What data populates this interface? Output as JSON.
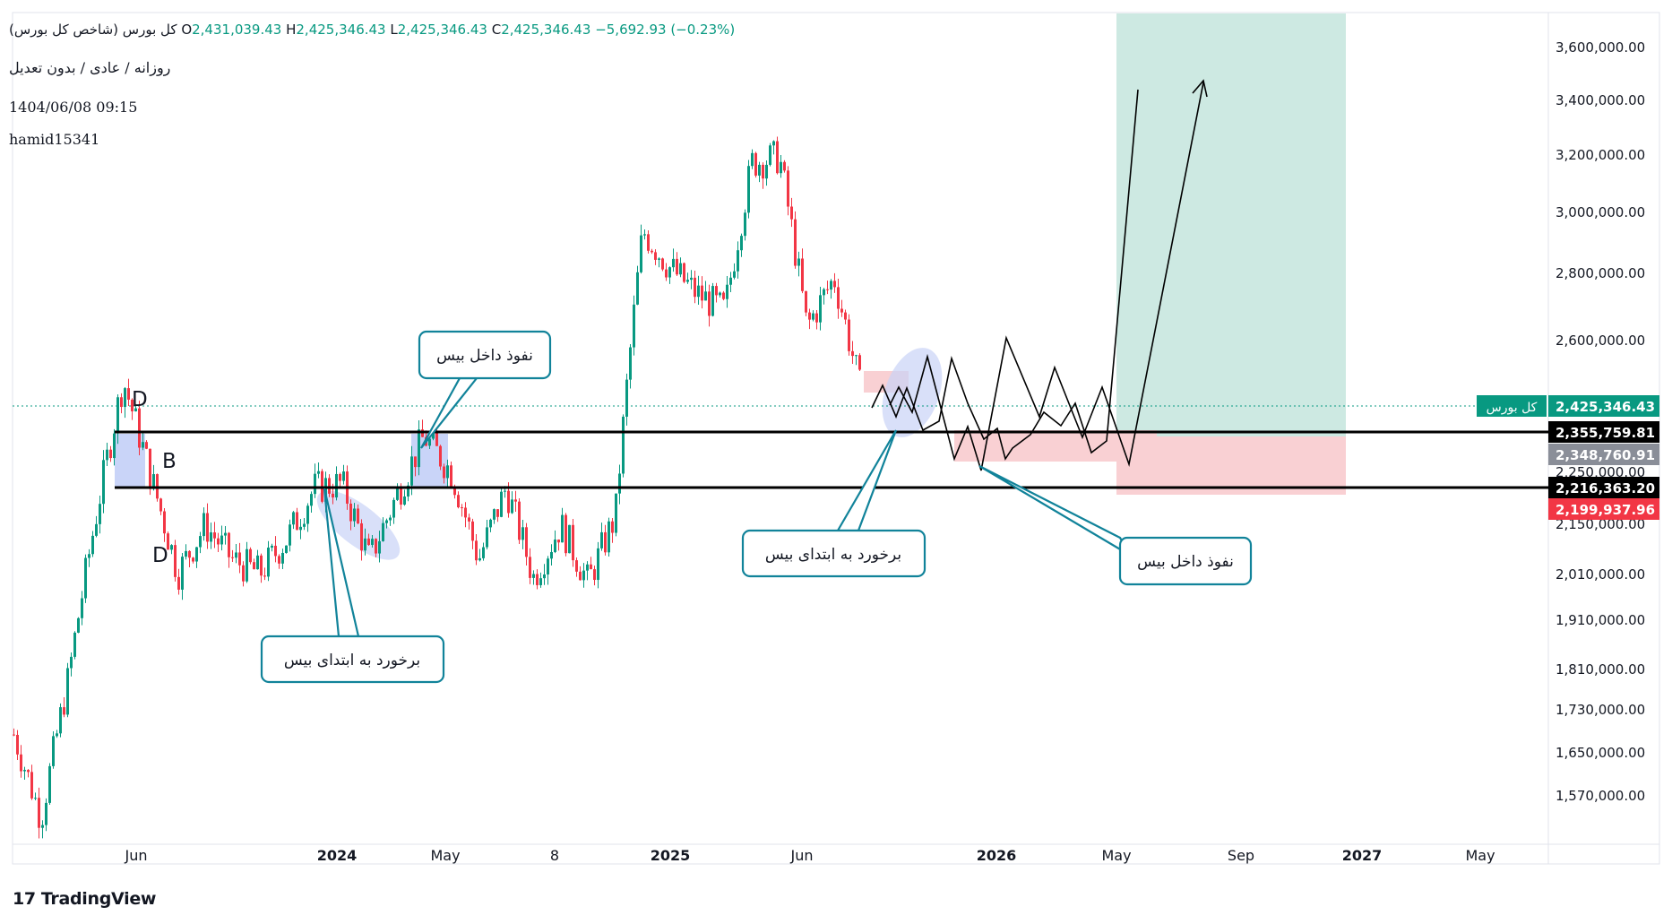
{
  "header": {
    "symbol_title": "کل بورس (شاخص کل بورس)",
    "ohlc": {
      "open_label": "O",
      "open": "2,431,039.43",
      "high_label": "H",
      "high": "2,425,346.43",
      "low_label": "L",
      "low": "2,425,346.43",
      "close_label": "C",
      "close": "2,425,346.43",
      "change": "−5,692.93 (−0.23%)"
    },
    "subtitle": "روزانه / عادی / بدون تعدیل",
    "timestamp": "1404/06/08 09:15",
    "author": "hamid15341"
  },
  "brand": {
    "name": "TradingView"
  },
  "colors": {
    "up": "#089981",
    "down": "#f23645",
    "target_zone": "#cde9e2",
    "stop_zone": "#f9d0d3",
    "base_box": "#bfcdf7",
    "callout": "#11839a"
  },
  "price_axis": {
    "ticks": [
      "3,600,000.00",
      "3,400,000.00",
      "3,200,000.00",
      "3,000,000.00",
      "2,800,000.00",
      "2,600,000.00",
      "2,250,000.00",
      "2,150,000.00",
      "2,010,000.00",
      "1,910,000.00",
      "1,810,000.00",
      "1,730,000.00",
      "1,650,000.00",
      "1,570,000.00"
    ],
    "current_label": "کل بورس",
    "current_price": "2,425,346.43",
    "labels": [
      "2,355,759.81",
      "2,348,760.91",
      "2,216,363.20",
      "2,199,937.96"
    ]
  },
  "time_axis": {
    "ticks": [
      "Jun",
      "2024",
      "May",
      "8",
      "2025",
      "Jun",
      "2026",
      "May",
      "Sep",
      "2027",
      "May"
    ]
  },
  "annotations": {
    "D_top": "D",
    "B": "B",
    "D_bottom": "D",
    "callout_1": "برخورد به ابتدای بیس",
    "callout_2": "نفوذ داخل بیس",
    "callout_3": "برخورد به ابتدای بیس",
    "callout_4": "نفوذ داخل بیس"
  },
  "chart_data": {
    "type": "candlestick",
    "title": "کل بورس (شاخص کل بورس)",
    "scale": "log",
    "ylim": [
      1500000,
      3750000
    ],
    "x_range": [
      "2023-04",
      "2027-07"
    ],
    "series": [
      {
        "name": "کل بورس",
        "points": [
          [
            "2023-04",
            1690000
          ],
          [
            "2023-04",
            1540000
          ],
          [
            "2023-05",
            1800000
          ],
          [
            "2023-05",
            2150000
          ],
          [
            "2023-06",
            2500000
          ],
          [
            "2023-06",
            2250000
          ],
          [
            "2023-07",
            2020000
          ],
          [
            "2023-08",
            2130000
          ],
          [
            "2023-09",
            2050000
          ],
          [
            "2023-10",
            2020000
          ],
          [
            "2023-11",
            2100000
          ],
          [
            "2023-12",
            2220000
          ],
          [
            "2024-01",
            2230000
          ],
          [
            "2024-02",
            2050000
          ],
          [
            "2024-03",
            2200000
          ],
          [
            "2024-04",
            2350000
          ],
          [
            "2024-05",
            2260000
          ],
          [
            "2024-06",
            2050000
          ],
          [
            "2024-07",
            2220000
          ],
          [
            "2024-08",
            2010000
          ],
          [
            "2024-09",
            2130000
          ],
          [
            "2024-10",
            2000000
          ],
          [
            "2024-11",
            2150000
          ],
          [
            "2024-12",
            2950000
          ],
          [
            "2025-01",
            2830000
          ],
          [
            "2025-02",
            2750000
          ],
          [
            "2025-03",
            2700000
          ],
          [
            "2025-04",
            3180000
          ],
          [
            "2025-05",
            3200000
          ],
          [
            "2025-06",
            2650000
          ],
          [
            "2025-07",
            2800000
          ],
          [
            "2025-08",
            2460000
          ]
        ]
      }
    ],
    "levels": [
      2355759.81,
      2216363.2
    ],
    "price_labels": [
      2425346.43,
      2355759.81,
      2348760.91,
      2216363.2,
      2199937.96
    ],
    "projection": [
      [
        "2025-08",
        2450000
      ],
      [
        "2025-09",
        2350000
      ],
      [
        "2025-10",
        2560000
      ],
      [
        "2025-11",
        2270000
      ],
      [
        "2025-12",
        2360000
      ],
      [
        "2025-12",
        2250000
      ],
      [
        "2026-01",
        2600000
      ],
      [
        "2026-02",
        2380000
      ],
      [
        "2026-03",
        2530000
      ],
      [
        "2026-04",
        2360000
      ],
      [
        "2026-04",
        2450000
      ],
      [
        "2026-05",
        2280000
      ],
      [
        "2026-08",
        3470000
      ]
    ],
    "position": {
      "entry": 2348760.91,
      "target": 3750000,
      "stop": 2199937.96,
      "from": "2026-05",
      "to": "2026-12"
    }
  }
}
